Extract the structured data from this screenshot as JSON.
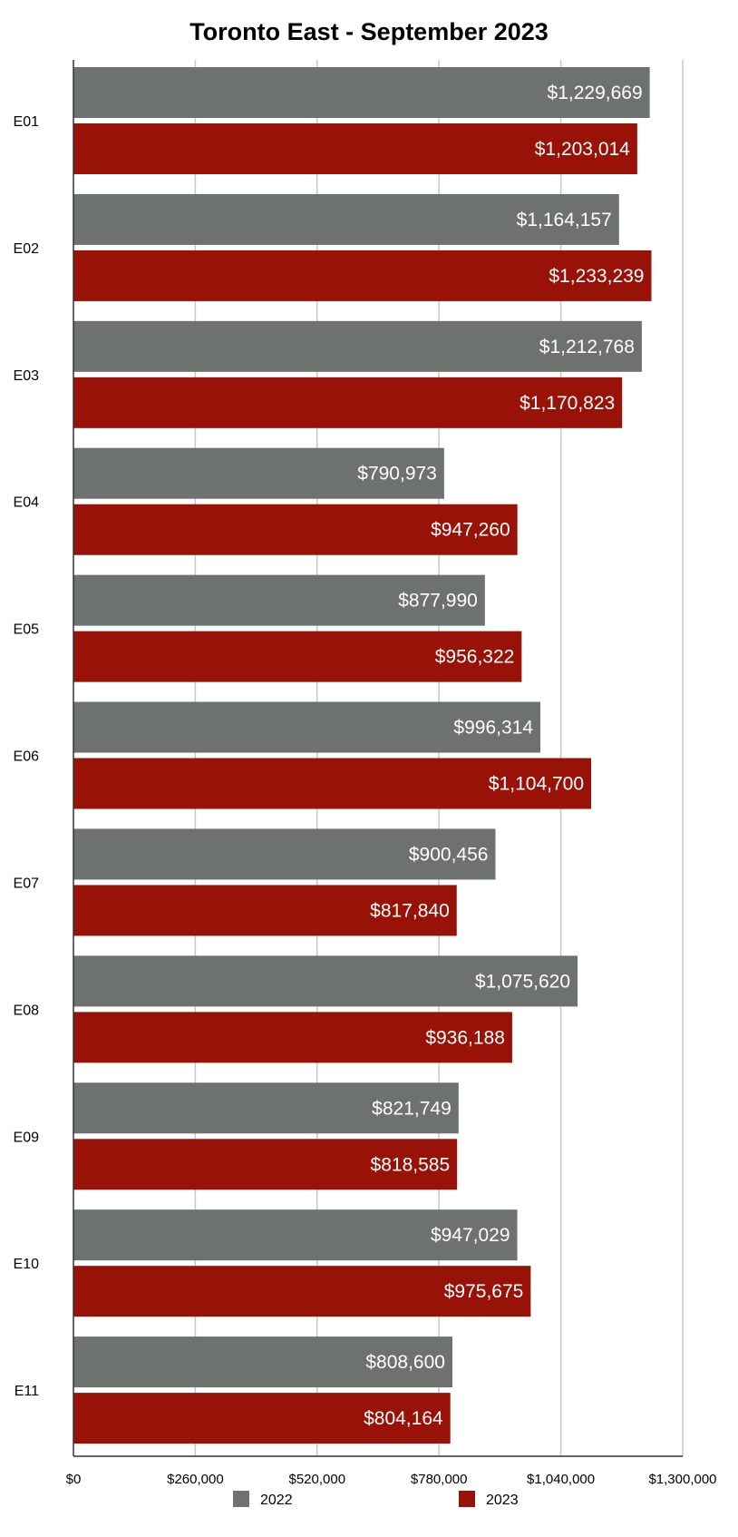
{
  "chart_data": {
    "type": "bar",
    "orientation": "horizontal",
    "title": "Toronto East - September 2023",
    "xlabel": "",
    "ylabel": "",
    "xlim": [
      0,
      1300000
    ],
    "x_ticks": [
      0,
      260000,
      520000,
      780000,
      1040000,
      1300000
    ],
    "x_tick_labels": [
      "$0",
      "$260,000",
      "$520,000",
      "$780,000",
      "$1,040,000",
      "$1,300,000"
    ],
    "grid": true,
    "legend_position": "bottom",
    "categories": [
      "E01",
      "E02",
      "E03",
      "E04",
      "E05",
      "E06",
      "E07",
      "E08",
      "E09",
      "E10",
      "E11"
    ],
    "series": [
      {
        "name": "2022",
        "color": "#6d726f",
        "values": [
          1229669,
          1164157,
          1212768,
          790973,
          877990,
          996314,
          900456,
          1075620,
          821749,
          947029,
          808600
        ],
        "labels": [
          "$1,229,669",
          "$1,164,157",
          "$1,212,768",
          "$790,973",
          "$877,990",
          "$996,314",
          "$900,456",
          "$1,075,620",
          "$821,749",
          "$947,029",
          "$808,600"
        ]
      },
      {
        "name": "2023",
        "color": "#981207",
        "values": [
          1203014,
          1233239,
          1170823,
          947260,
          956322,
          1104700,
          817840,
          936188,
          818585,
          975675,
          804164
        ],
        "labels": [
          "$1,203,014",
          "$1,233,239",
          "$1,170,823",
          "$947,260",
          "$956,322",
          "$1,104,700",
          "$817,840",
          "$936,188",
          "$818,585",
          "$975,675",
          "$804,164"
        ]
      }
    ]
  }
}
